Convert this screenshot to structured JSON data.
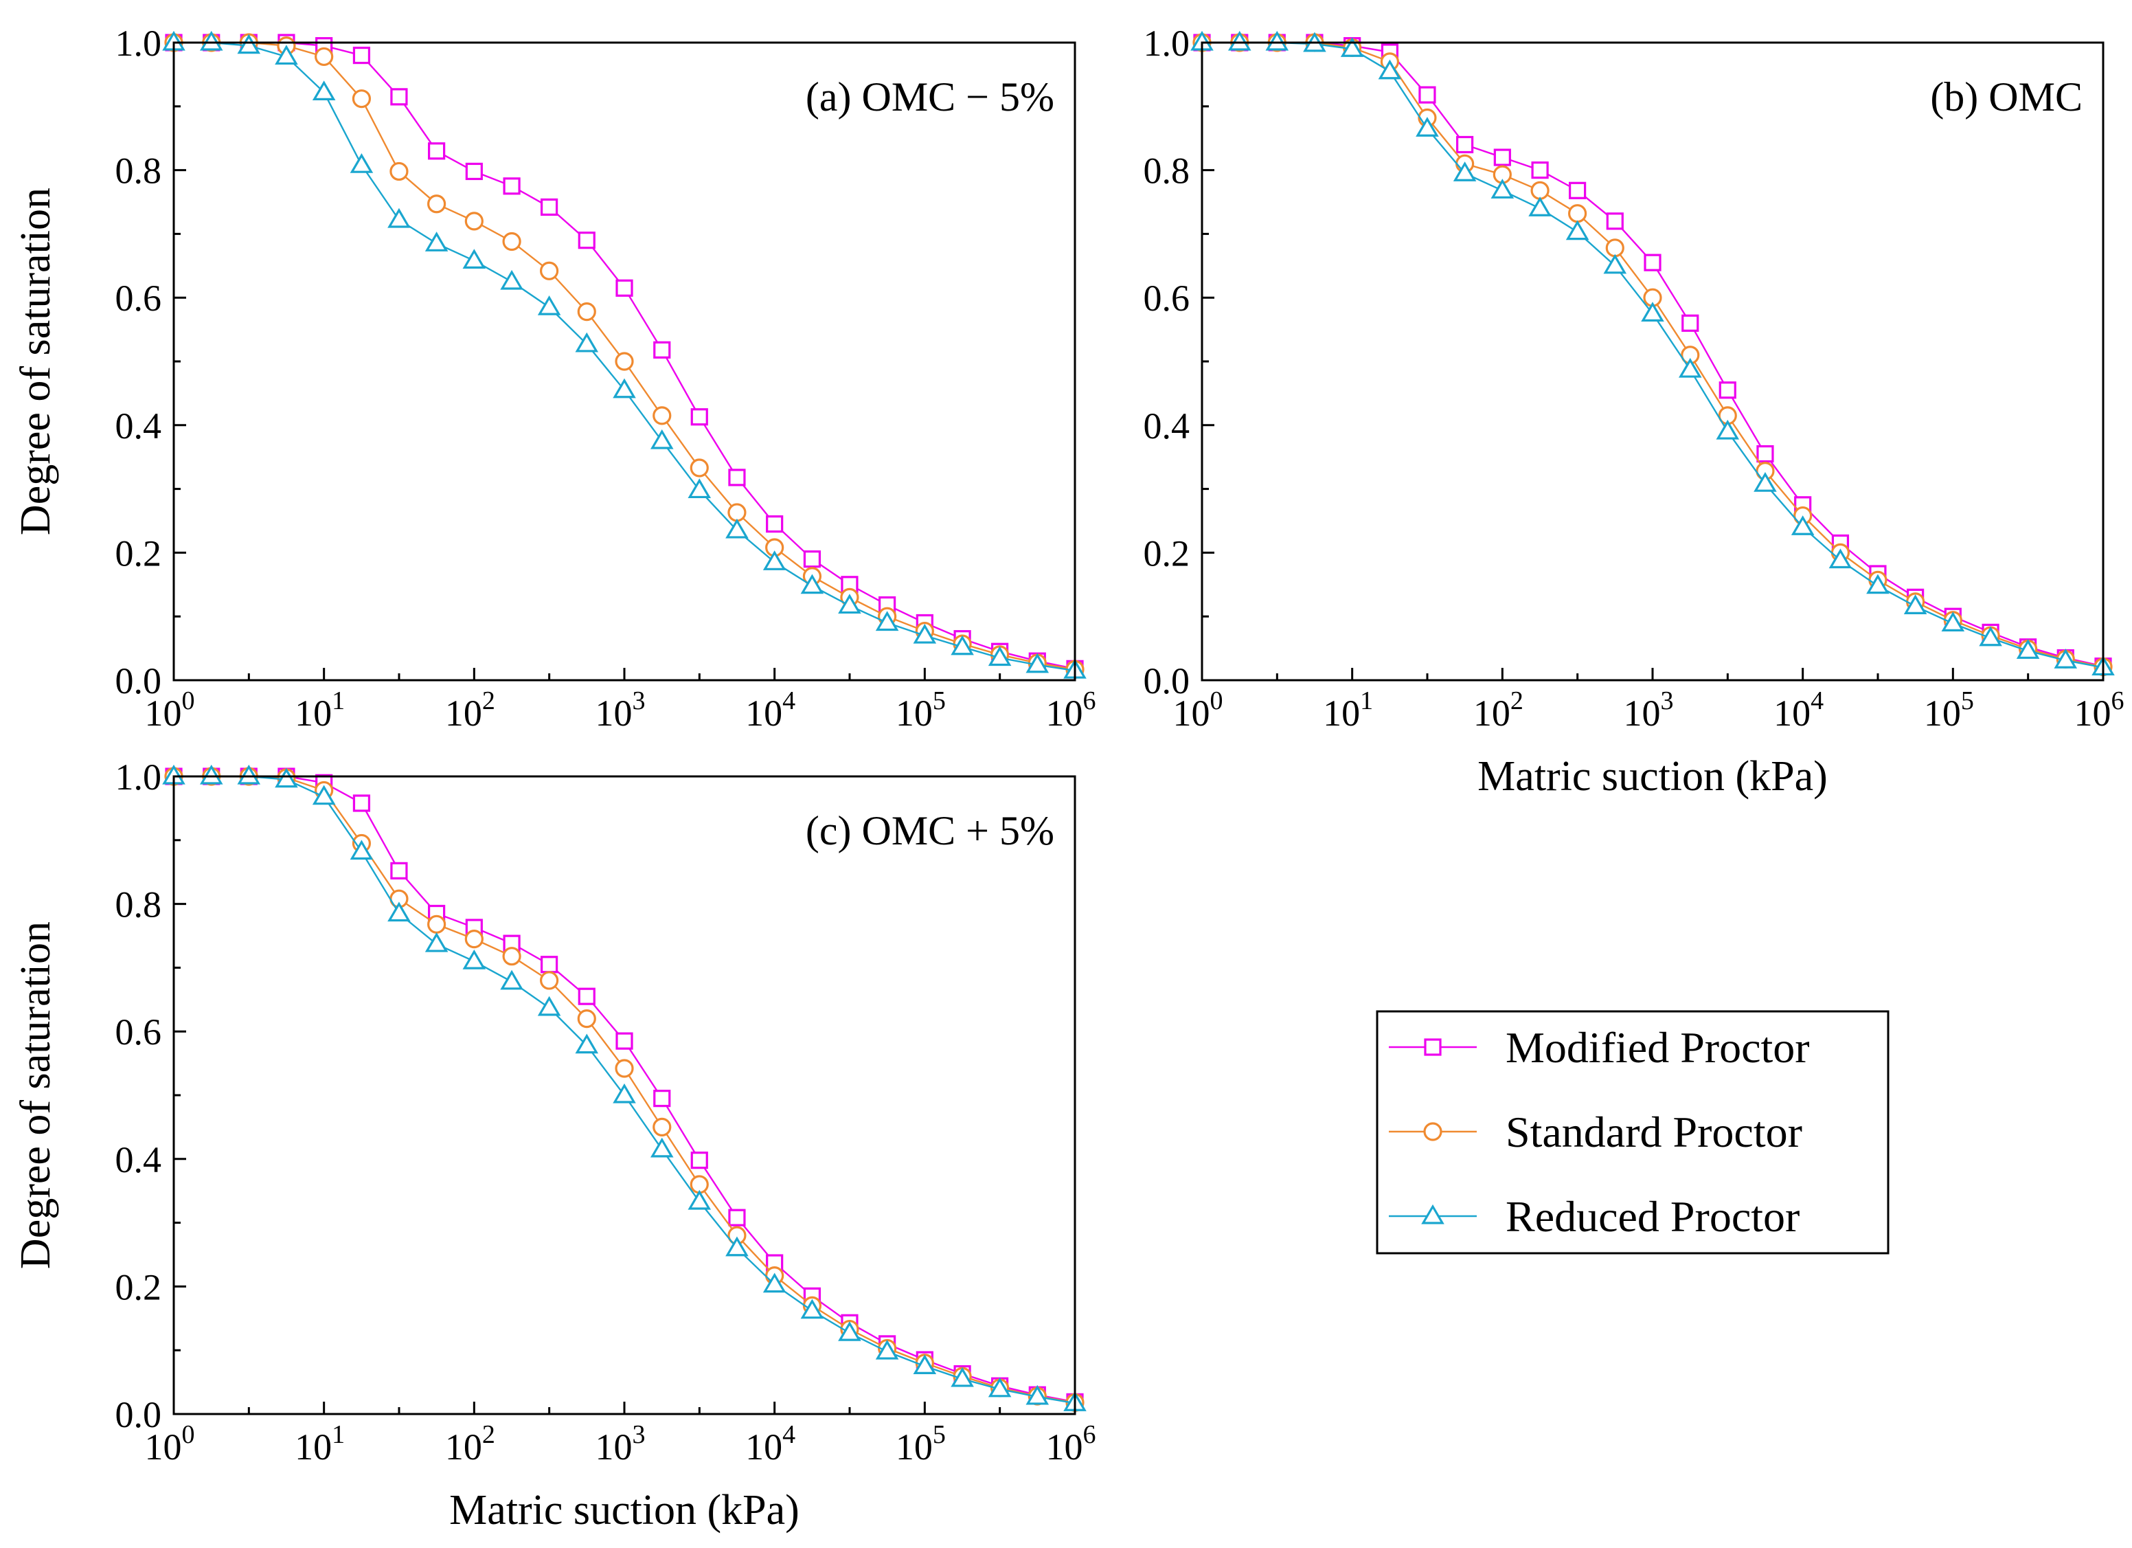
{
  "legend": {
    "items": [
      {
        "label": "Modified Proctor",
        "color": "#ee00ee",
        "marker": "square"
      },
      {
        "label": "Standard Proctor",
        "color": "#f08a30",
        "marker": "circle"
      },
      {
        "label": "Reduced Proctor",
        "color": "#1aa6cf",
        "marker": "triangle"
      }
    ]
  },
  "chart_data": [
    {
      "type": "line",
      "title": "(a) OMC − 5%",
      "xlabel": "",
      "ylabel": "Degree of saturation",
      "xscale": "log",
      "xlim": [
        1,
        1000000
      ],
      "ylim": [
        0,
        1
      ],
      "x_ticks": [
        {
          "base": "10",
          "exp": "0"
        },
        {
          "base": "10",
          "exp": "1"
        },
        {
          "base": "10",
          "exp": "2"
        },
        {
          "base": "10",
          "exp": "3"
        },
        {
          "base": "10",
          "exp": "4"
        },
        {
          "base": "10",
          "exp": "5"
        },
        {
          "base": "10",
          "exp": "6"
        }
      ],
      "y_ticks": [
        "0.0",
        "0.2",
        "0.4",
        "0.6",
        "0.8",
        "1.0"
      ],
      "x": [
        1,
        1.78,
        3.16,
        5.62,
        10,
        17.8,
        31.6,
        56.2,
        100,
        178,
        316,
        562,
        1000,
        1780,
        3160,
        5620,
        10000,
        17800,
        31600,
        56200,
        100000,
        178000,
        316000,
        562000,
        1000000
      ],
      "series": [
        {
          "name": "Modified Proctor",
          "values": [
            1.0,
            1.0,
            1.0,
            1.0,
            0.995,
            0.98,
            0.915,
            0.83,
            0.798,
            0.775,
            0.742,
            0.69,
            0.615,
            0.518,
            0.413,
            0.318,
            0.245,
            0.19,
            0.15,
            0.118,
            0.09,
            0.065,
            0.045,
            0.03,
            0.018
          ]
        },
        {
          "name": "Standard Proctor",
          "values": [
            1.0,
            1.0,
            1.0,
            0.995,
            0.978,
            0.912,
            0.798,
            0.747,
            0.72,
            0.688,
            0.642,
            0.578,
            0.5,
            0.415,
            0.333,
            0.263,
            0.208,
            0.163,
            0.13,
            0.1,
            0.077,
            0.057,
            0.04,
            0.027,
            0.017
          ]
        },
        {
          "name": "Reduced Proctor",
          "values": [
            1.0,
            1.0,
            0.995,
            0.978,
            0.922,
            0.808,
            0.722,
            0.685,
            0.658,
            0.625,
            0.585,
            0.527,
            0.455,
            0.375,
            0.298,
            0.235,
            0.185,
            0.148,
            0.117,
            0.09,
            0.07,
            0.052,
            0.035,
            0.024,
            0.015
          ]
        }
      ]
    },
    {
      "type": "line",
      "title": "(b) OMC",
      "xlabel": "Matric suction (kPa)",
      "ylabel": "",
      "xscale": "log",
      "xlim": [
        1,
        1000000
      ],
      "ylim": [
        0,
        1
      ],
      "x_ticks": [
        {
          "base": "10",
          "exp": "0"
        },
        {
          "base": "10",
          "exp": "1"
        },
        {
          "base": "10",
          "exp": "2"
        },
        {
          "base": "10",
          "exp": "3"
        },
        {
          "base": "10",
          "exp": "4"
        },
        {
          "base": "10",
          "exp": "5"
        },
        {
          "base": "10",
          "exp": "6"
        }
      ],
      "y_ticks": [
        "0.0",
        "0.2",
        "0.4",
        "0.6",
        "0.8",
        "1.0"
      ],
      "x": [
        1,
        1.78,
        3.16,
        5.62,
        10,
        17.8,
        31.6,
        56.2,
        100,
        178,
        316,
        562,
        1000,
        1780,
        3160,
        5620,
        10000,
        17800,
        31600,
        56200,
        100000,
        178000,
        316000,
        562000,
        1000000
      ],
      "series": [
        {
          "name": "Modified Proctor",
          "values": [
            1.0,
            1.0,
            1.0,
            1.0,
            0.995,
            0.985,
            0.918,
            0.84,
            0.82,
            0.8,
            0.768,
            0.72,
            0.655,
            0.56,
            0.455,
            0.355,
            0.275,
            0.215,
            0.167,
            0.13,
            0.1,
            0.075,
            0.052,
            0.035,
            0.022
          ]
        },
        {
          "name": "Standard Proctor",
          "values": [
            1.0,
            1.0,
            1.0,
            1.0,
            0.992,
            0.97,
            0.882,
            0.81,
            0.793,
            0.768,
            0.732,
            0.678,
            0.6,
            0.51,
            0.415,
            0.328,
            0.258,
            0.2,
            0.157,
            0.123,
            0.094,
            0.07,
            0.049,
            0.033,
            0.021
          ]
        },
        {
          "name": "Reduced Proctor",
          "values": [
            1.0,
            1.0,
            1.0,
            0.998,
            0.99,
            0.955,
            0.865,
            0.795,
            0.768,
            0.74,
            0.703,
            0.65,
            0.575,
            0.487,
            0.39,
            0.308,
            0.24,
            0.188,
            0.148,
            0.116,
            0.089,
            0.066,
            0.046,
            0.031,
            0.02
          ]
        }
      ]
    },
    {
      "type": "line",
      "title": "(c) OMC + 5%",
      "xlabel": "Matric suction (kPa)",
      "ylabel": "Degree of saturation",
      "xscale": "log",
      "xlim": [
        1,
        1000000
      ],
      "ylim": [
        0,
        1
      ],
      "x_ticks": [
        {
          "base": "10",
          "exp": "0"
        },
        {
          "base": "10",
          "exp": "1"
        },
        {
          "base": "10",
          "exp": "2"
        },
        {
          "base": "10",
          "exp": "3"
        },
        {
          "base": "10",
          "exp": "4"
        },
        {
          "base": "10",
          "exp": "5"
        },
        {
          "base": "10",
          "exp": "6"
        }
      ],
      "y_ticks": [
        "0.0",
        "0.2",
        "0.4",
        "0.6",
        "0.8",
        "1.0"
      ],
      "x": [
        1,
        1.78,
        3.16,
        5.62,
        10,
        17.8,
        31.6,
        56.2,
        100,
        178,
        316,
        562,
        1000,
        1780,
        3160,
        5620,
        10000,
        17800,
        31600,
        56200,
        100000,
        178000,
        316000,
        562000,
        1000000
      ],
      "series": [
        {
          "name": "Modified Proctor",
          "values": [
            1.0,
            1.0,
            1.0,
            1.0,
            0.99,
            0.958,
            0.852,
            0.785,
            0.763,
            0.738,
            0.705,
            0.655,
            0.585,
            0.495,
            0.398,
            0.308,
            0.237,
            0.185,
            0.143,
            0.11,
            0.085,
            0.063,
            0.044,
            0.03,
            0.019
          ]
        },
        {
          "name": "Standard Proctor",
          "values": [
            1.0,
            1.0,
            1.0,
            0.998,
            0.978,
            0.895,
            0.808,
            0.768,
            0.745,
            0.718,
            0.68,
            0.62,
            0.542,
            0.45,
            0.36,
            0.28,
            0.217,
            0.17,
            0.133,
            0.103,
            0.08,
            0.059,
            0.041,
            0.028,
            0.018
          ]
        },
        {
          "name": "Reduced Proctor",
          "values": [
            1.0,
            1.0,
            1.0,
            0.995,
            0.968,
            0.882,
            0.785,
            0.737,
            0.71,
            0.678,
            0.637,
            0.578,
            0.5,
            0.415,
            0.333,
            0.26,
            0.203,
            0.162,
            0.127,
            0.098,
            0.075,
            0.055,
            0.039,
            0.027,
            0.017
          ]
        }
      ]
    }
  ]
}
